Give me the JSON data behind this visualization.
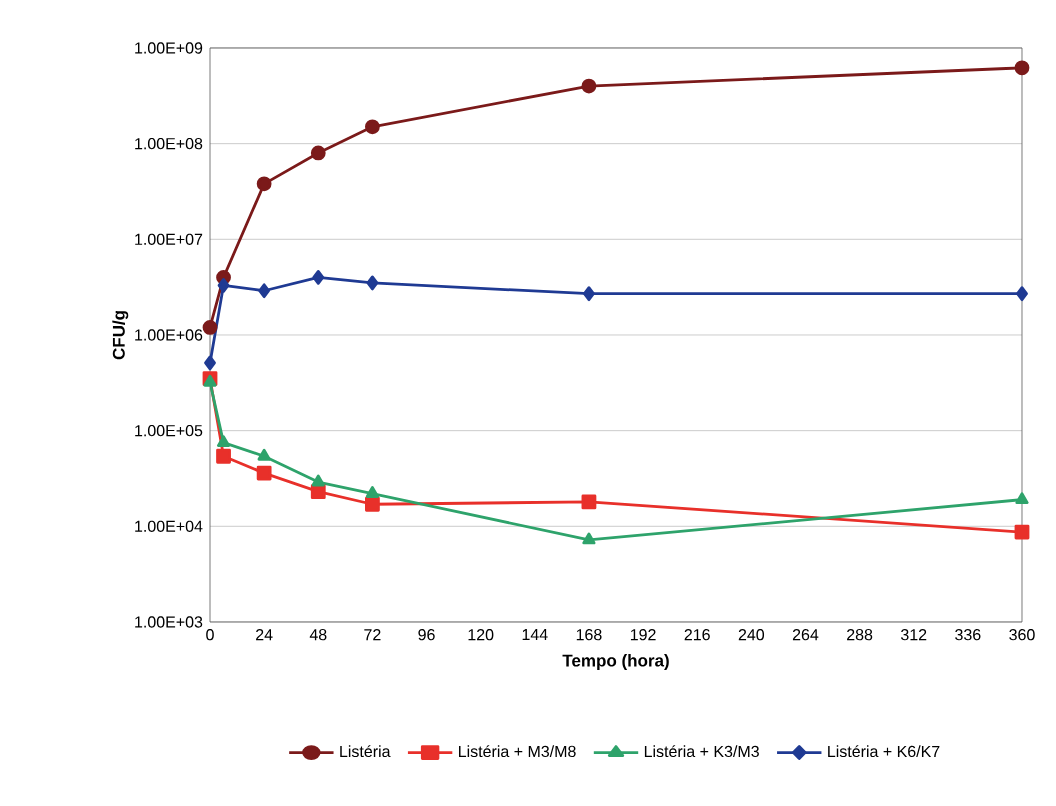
{
  "chart_data": {
    "type": "line",
    "xlabel": "Tempo (hora)",
    "ylabel": "CFU/g",
    "x": [
      0,
      6,
      24,
      48,
      72,
      168,
      360
    ],
    "series": [
      {
        "name": "Listéria",
        "color": "#7b1a1a",
        "marker": "circle",
        "values": [
          1200000,
          4000000,
          38000000,
          80000000,
          150000000,
          400000000,
          620000000
        ]
      },
      {
        "name": "Listéria + M3/M8",
        "color": "#e8302a",
        "marker": "square",
        "values": [
          350000,
          54000,
          36000,
          23000,
          17000,
          18000,
          8700
        ]
      },
      {
        "name": "Listéria + K3/M3",
        "color": "#2ea36b",
        "marker": "triangle",
        "values": [
          320000,
          75000,
          54000,
          29000,
          22000,
          7200,
          19000
        ]
      },
      {
        "name": "Listéria + K6/K7",
        "color": "#1f3a93",
        "marker": "diamond",
        "values": [
          510000,
          3300000,
          2900000,
          4000000,
          3500000,
          2700000,
          2700000
        ]
      }
    ],
    "log": "y",
    "xlim": [
      0,
      360
    ],
    "xticks": [
      0,
      24,
      48,
      72,
      96,
      120,
      144,
      168,
      192,
      216,
      240,
      264,
      288,
      312,
      336,
      360
    ],
    "ylim": [
      1000,
      1000000000
    ],
    "yticks": [
      {
        "value": 1000,
        "label": "1.00E+03"
      },
      {
        "value": 10000,
        "label": "1.00E+04"
      },
      {
        "value": 100000,
        "label": "1.00E+05"
      },
      {
        "value": 1000000,
        "label": "1.00E+06"
      },
      {
        "value": 10000000,
        "label": "1.00E+07"
      },
      {
        "value": 100000000,
        "label": "1.00E+08"
      },
      {
        "value": 1000000000,
        "label": "1.00E+09"
      }
    ],
    "grid": "y",
    "legend": "bottom",
    "line_style": "solid"
  }
}
